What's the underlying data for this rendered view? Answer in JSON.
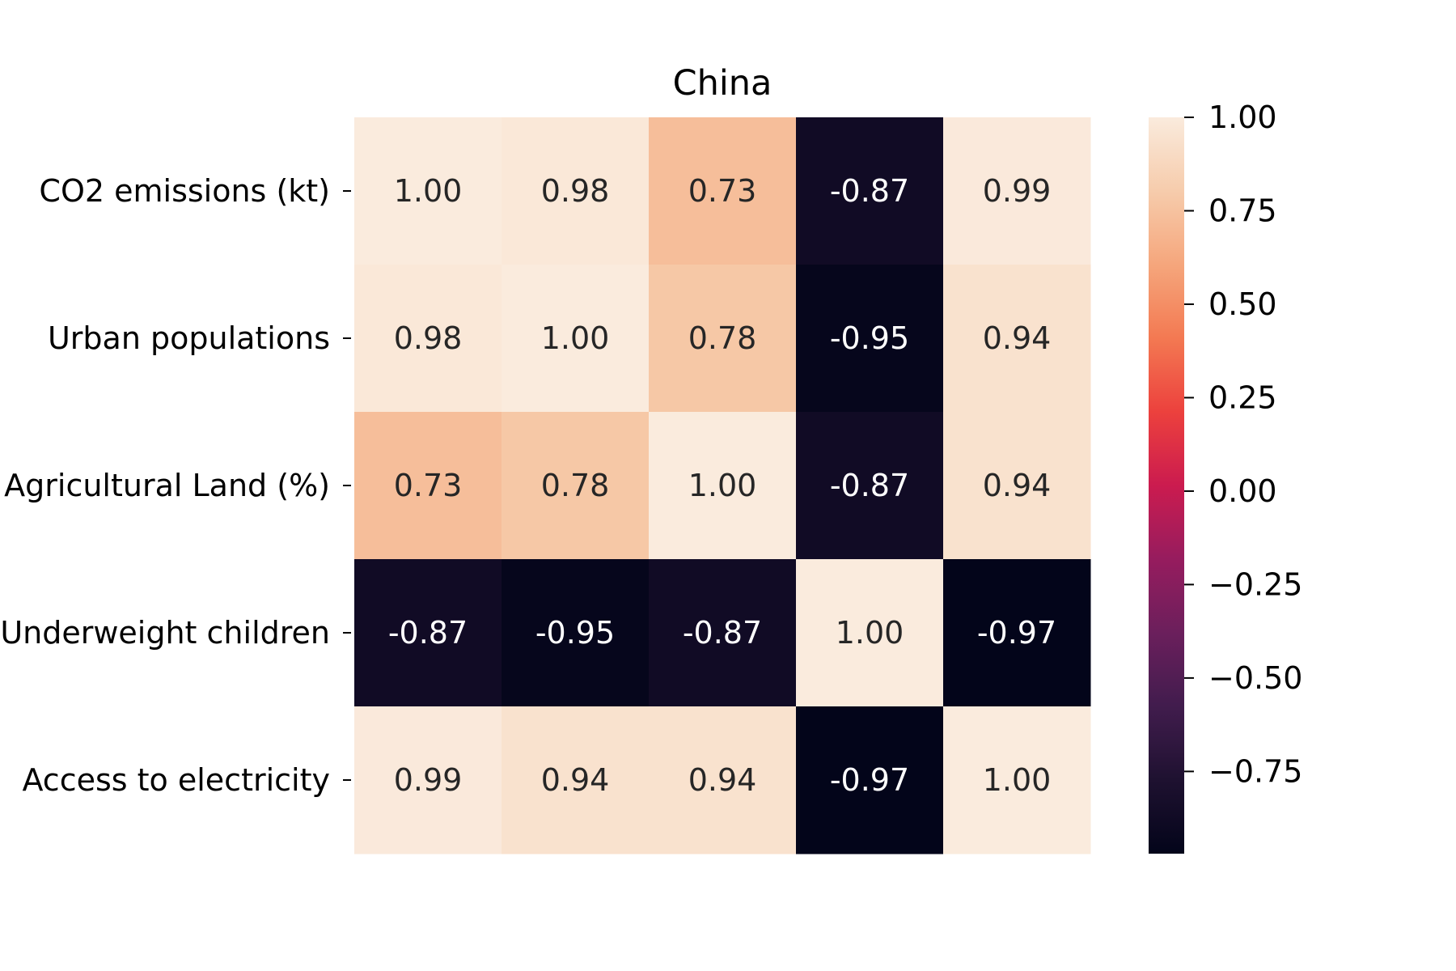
{
  "chart_data": {
    "type": "heatmap",
    "title": "China",
    "xlabel": "",
    "ylabel": "",
    "row_labels": [
      "CO2 emissions (kt)",
      "Urban populations",
      "Agricultural Land (%)",
      "Underweight children",
      "Access to electricity"
    ],
    "column_labels": [],
    "values": [
      [
        1.0,
        0.98,
        0.73,
        -0.87,
        0.99
      ],
      [
        0.98,
        1.0,
        0.78,
        -0.95,
        0.94
      ],
      [
        0.73,
        0.78,
        1.0,
        -0.87,
        0.94
      ],
      [
        -0.87,
        -0.95,
        -0.87,
        1.0,
        -0.97
      ],
      [
        0.99,
        0.94,
        0.94,
        -0.97,
        1.0
      ]
    ],
    "annotations": [
      [
        "1.00",
        "0.98",
        "0.73",
        "-0.87",
        "0.99"
      ],
      [
        "0.98",
        "1.00",
        "0.78",
        "-0.95",
        "0.94"
      ],
      [
        "0.73",
        "0.78",
        "1.00",
        "-0.87",
        "0.94"
      ],
      [
        "-0.87",
        "-0.95",
        "-0.87",
        "1.00",
        "-0.97"
      ],
      [
        "0.99",
        "0.94",
        "0.94",
        "-0.97",
        "1.00"
      ]
    ],
    "colorbar": {
      "colormap": "rocket",
      "range": [
        -0.97,
        1.0
      ],
      "ticks": [
        1.0,
        0.75,
        0.5,
        0.25,
        0.0,
        -0.25,
        -0.5,
        -0.75
      ],
      "tick_labels": [
        "1.00",
        "0.75",
        "0.50",
        "0.25",
        "0.00",
        "−0.25",
        "−0.50",
        "−0.75"
      ]
    }
  }
}
